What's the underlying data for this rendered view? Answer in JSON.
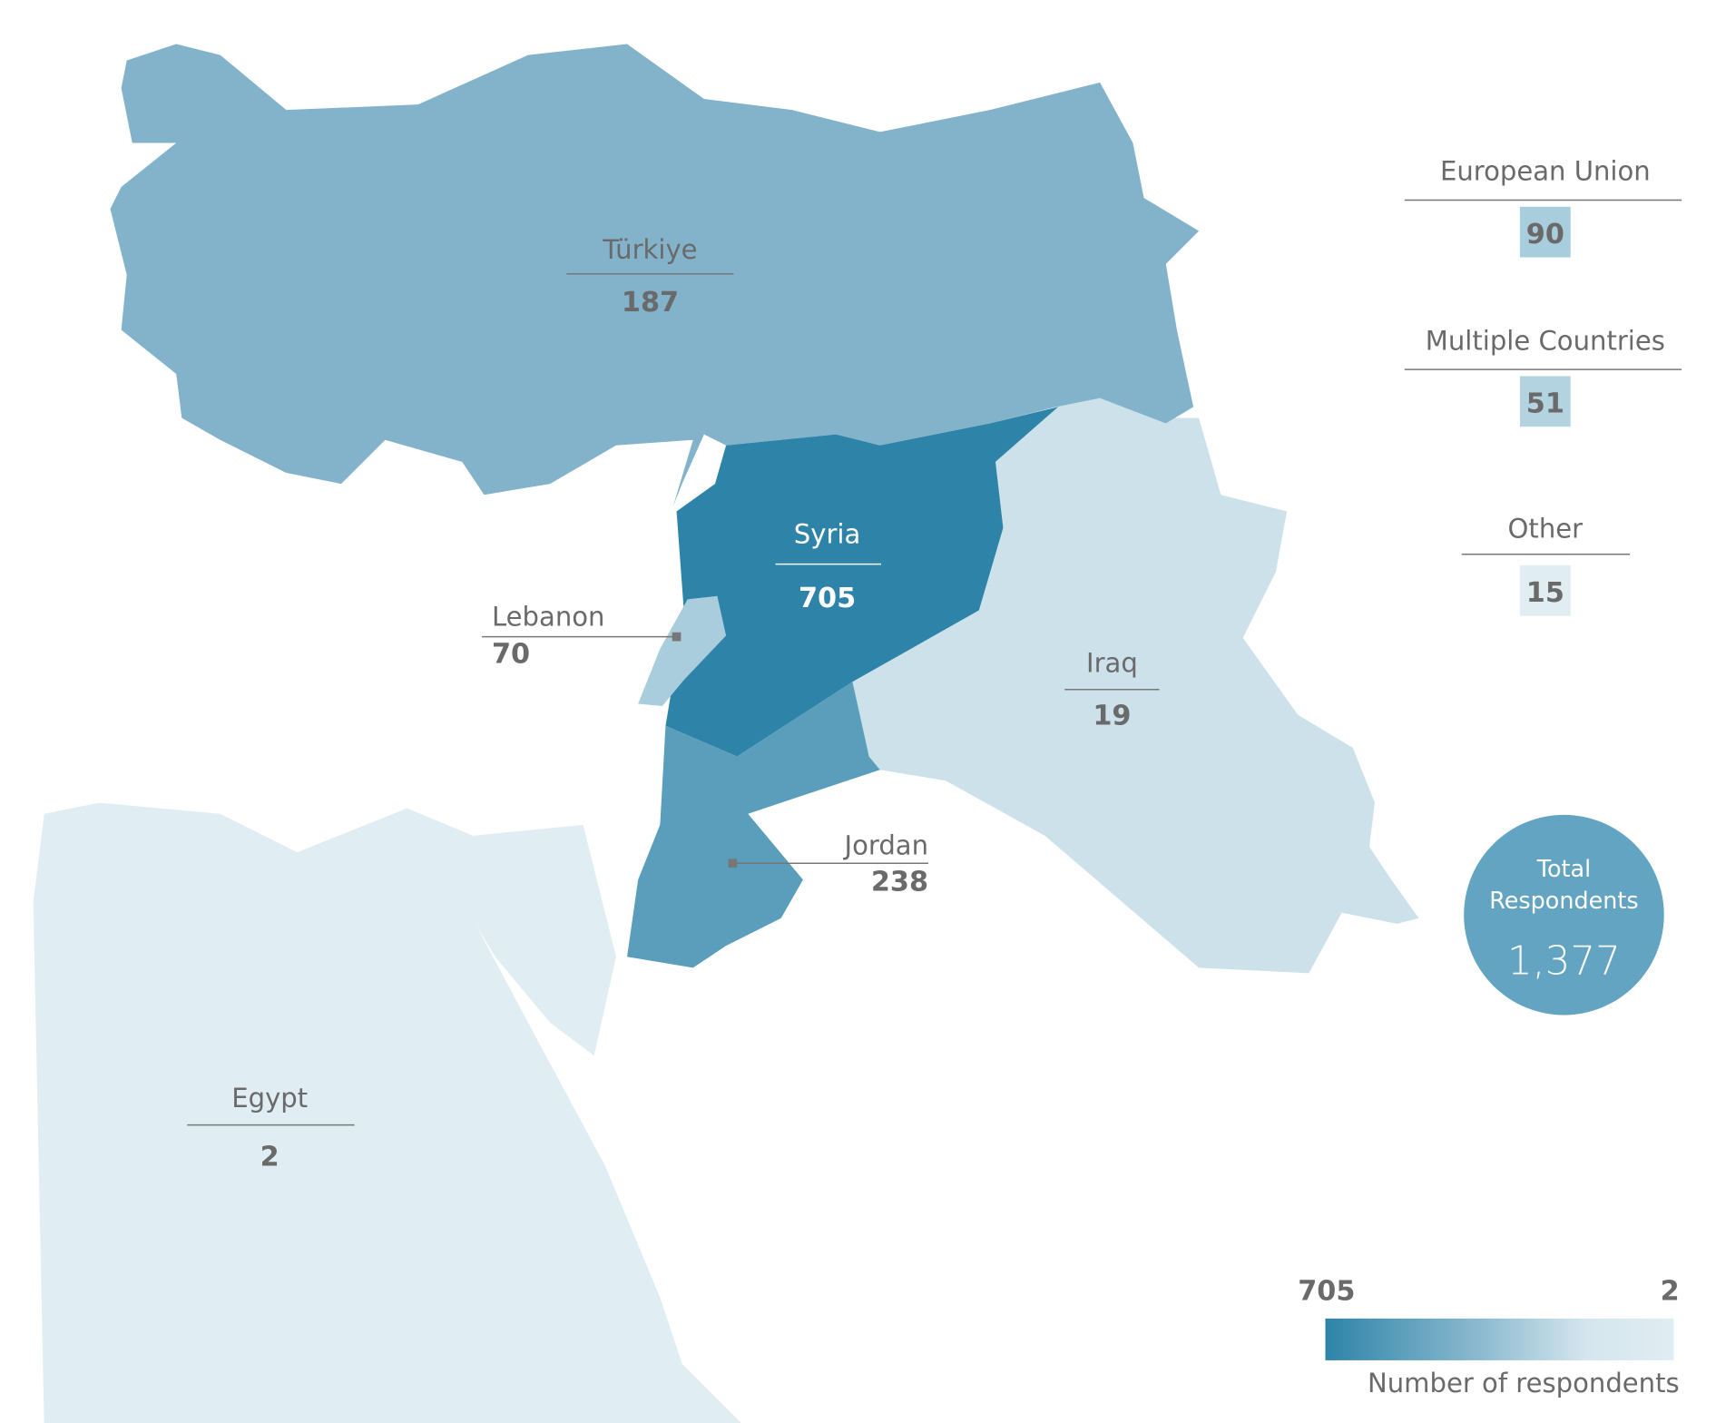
{
  "chart_data": {
    "type": "choropleth",
    "regions": [
      {
        "name": "Türkiye",
        "value": 187,
        "color": "#82b3ca"
      },
      {
        "name": "Syria",
        "value": 705,
        "color": "#2e84a8"
      },
      {
        "name": "Lebanon",
        "value": 70,
        "color": "#a9cddc"
      },
      {
        "name": "Jordan",
        "value": 238,
        "color": "#5b9ebb"
      },
      {
        "name": "Iraq",
        "value": 19,
        "color": "#cde1eb"
      },
      {
        "name": "Egypt",
        "value": 2,
        "color": "#e0edf2"
      }
    ],
    "other_groups": [
      {
        "name": "European Union",
        "value": 90,
        "color": "#a8cddc"
      },
      {
        "name": "Multiple Countries",
        "value": 51,
        "color": "#b3d3e0"
      },
      {
        "name": "Other",
        "value": 15,
        "color": "#e0edf2"
      }
    ],
    "total": {
      "label_line1": "Total",
      "label_line2": "Respondents",
      "value": "1,377",
      "color": "#62a4c1"
    },
    "legend": {
      "max": "705",
      "min": "2",
      "title": "Number of respondents",
      "color_max": "#2e84a8",
      "color_min": "#e0edf2"
    }
  }
}
